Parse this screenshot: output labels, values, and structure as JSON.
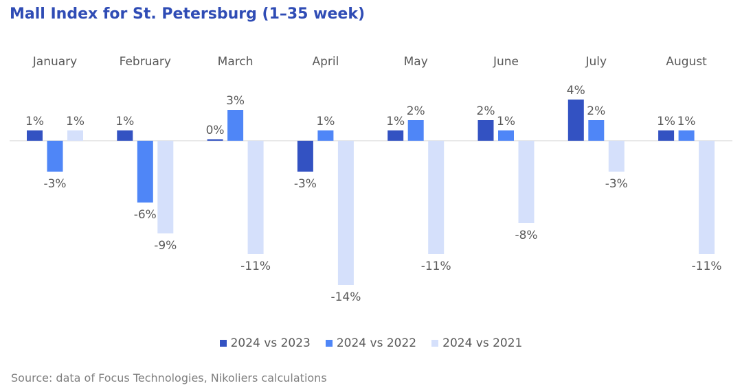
{
  "chart_data": {
    "type": "bar",
    "title": "Mall Index for St. Petersburg (1–35 week)",
    "categories": [
      "January",
      "February",
      "March",
      "April",
      "May",
      "June",
      "July",
      "August"
    ],
    "series": [
      {
        "name": "2024 vs 2023",
        "color": "#3352c2",
        "values": [
          1,
          1,
          0,
          -3,
          1,
          2,
          4,
          1
        ],
        "labels": [
          "1%",
          "1%",
          "0%",
          "-3%",
          "1%",
          "2%",
          "4%",
          "1%"
        ]
      },
      {
        "name": "2024 vs 2022",
        "color": "#4f86f7",
        "values": [
          -3,
          -6,
          3,
          1,
          2,
          1,
          2,
          1
        ],
        "labels": [
          "-3%",
          "-6%",
          "3%",
          "1%",
          "2%",
          "1%",
          "2%",
          "1%"
        ]
      },
      {
        "name": "2024 vs 2021",
        "color": "#d5e0fb",
        "values": [
          1,
          -9,
          -11,
          -14,
          -11,
          -8,
          -3,
          -11
        ],
        "labels": [
          "1%",
          "-9%",
          "-11%",
          "-14%",
          "-11%",
          "-8%",
          "-3%",
          "-11%"
        ]
      }
    ],
    "legend_position": "bottom",
    "grid": false
  },
  "source": "Source: data of Focus Technologies, Nikoliers calculations"
}
